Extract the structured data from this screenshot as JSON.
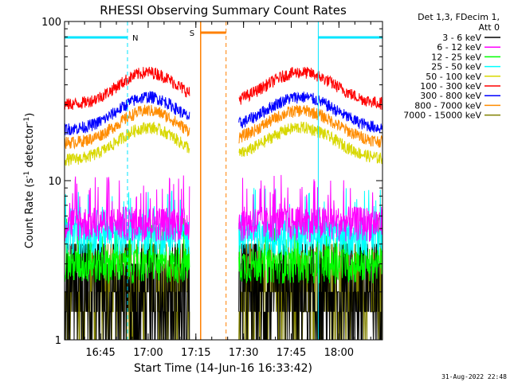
{
  "chart_data": {
    "type": "line",
    "title": "RHESSI Observing Summary Count Rates",
    "xlabel": "Start Time (14-Jun-16 16:33:42)",
    "ylabel_parts": [
      "Count Rate (s",
      "-1",
      " detector",
      "-1",
      ")"
    ],
    "yscale": "log",
    "ylim": [
      1,
      100
    ],
    "y_ticks": [
      {
        "value": 1,
        "label": "1"
      },
      {
        "value": 10,
        "label": "10"
      },
      {
        "value": 100,
        "label": "100"
      }
    ],
    "x_range_minutes": [
      "16:33:42",
      "18:13:42"
    ],
    "x_ticks": [
      "16:45",
      "17:00",
      "17:15",
      "17:30",
      "17:45",
      "18:00"
    ],
    "legend_title": [
      "Det 1,3, FDecim 1,",
      "Att 0"
    ],
    "series": [
      {
        "name": "3 - 6 keV",
        "color": "#000000",
        "level": 1.5
      },
      {
        "name": "6 - 12 keV",
        "color": "#ff00ff",
        "level": 5.5
      },
      {
        "name": "12 - 25 keV",
        "color": "#00ff00",
        "level": 3.0
      },
      {
        "name": "25 - 50 keV",
        "color": "#00ffff",
        "level": 4.5
      },
      {
        "name": "50 - 100 keV",
        "color": "#d8d800",
        "level": 18
      },
      {
        "name": "100 - 300 keV",
        "color": "#ff0000",
        "level": 40
      },
      {
        "name": "300 - 800 keV",
        "color": "#0000ff",
        "level": 28
      },
      {
        "name": "800 - 7000 keV",
        "color": "#ff8c00",
        "level": 23
      },
      {
        "name": "7000 - 15000 keV",
        "color": "#808000",
        "level": 1.5
      }
    ],
    "night_marker": {
      "label": "N",
      "color": "#00e5ff",
      "intervals": [
        [
          "16:33:42",
          "16:53:30"
        ],
        [
          "17:53:30",
          "18:13:42"
        ]
      ]
    },
    "saa_marker": {
      "label": "S",
      "color": "#ff8000",
      "interval": [
        "17:16:30",
        "17:24:30"
      ]
    },
    "data_gap": [
      "17:13:00",
      "17:28:30"
    ]
  },
  "footer": {
    "timestamp": "31-Aug-2022 22:48"
  }
}
